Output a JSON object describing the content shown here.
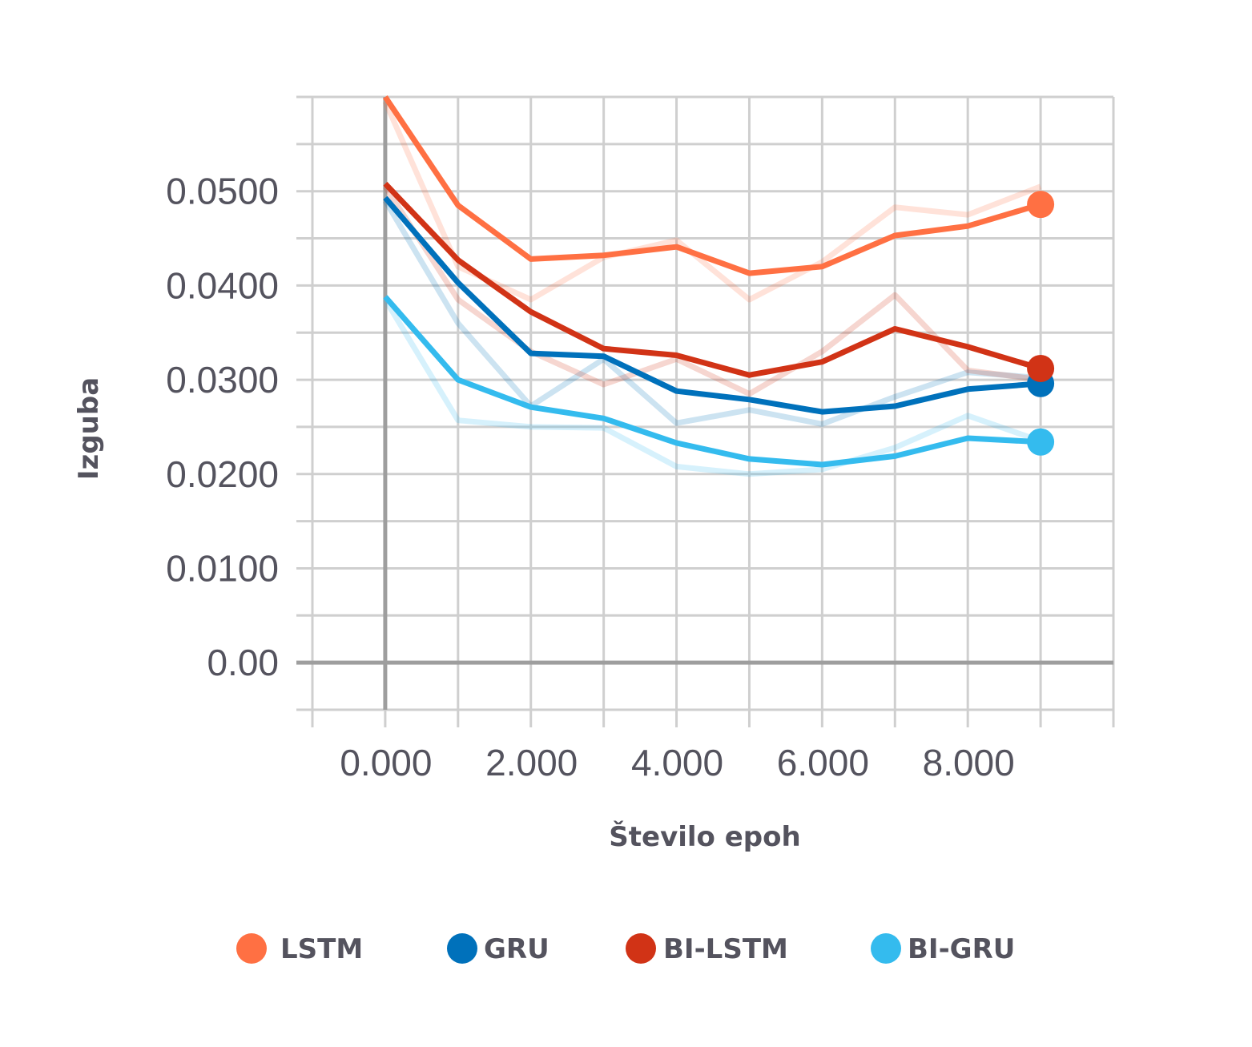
{
  "chart_data": {
    "type": "line",
    "title": "",
    "xlabel": "Število epoh",
    "ylabel": "Izguba",
    "xlim": [
      -1,
      10
    ],
    "ylim": [
      -0.005,
      0.06
    ],
    "x_ticks": [
      0,
      2,
      4,
      6,
      8
    ],
    "x_tick_labels": [
      "0.000",
      "2.000",
      "4.000",
      "6.000",
      "8.000"
    ],
    "y_ticks": [
      0,
      0.01,
      0.02,
      0.03,
      0.04,
      0.05
    ],
    "y_tick_labels": [
      "0.00",
      "0.0100",
      "0.0200",
      "0.0300",
      "0.0400",
      "0.0500"
    ],
    "grid": true,
    "legend_position": "bottom",
    "x": [
      0,
      1,
      2,
      3,
      4,
      5,
      6,
      7,
      8,
      9
    ],
    "series": [
      {
        "name": "LSTM",
        "color": "#ff7043",
        "values": [
          0.06,
          0.0485,
          0.0428,
          0.0432,
          0.0441,
          0.0413,
          0.042,
          0.0453,
          0.0463,
          0.0486
        ],
        "raw_values": [
          0.0595,
          0.042,
          0.0385,
          0.043,
          0.0448,
          0.0385,
          0.0425,
          0.0483,
          0.0475,
          0.0505
        ]
      },
      {
        "name": "GRU",
        "color": "#0071bb",
        "values": [
          0.0493,
          0.0403,
          0.0328,
          0.0325,
          0.0288,
          0.0279,
          0.0266,
          0.0272,
          0.029,
          0.0296
        ],
        "raw_values": [
          0.049,
          0.036,
          0.0272,
          0.0322,
          0.0254,
          0.0268,
          0.0253,
          0.0282,
          0.0308,
          0.0302
        ]
      },
      {
        "name": "BI-LSTM",
        "color": "#d13316",
        "values": [
          0.0508,
          0.0427,
          0.0372,
          0.0333,
          0.0326,
          0.0305,
          0.0319,
          0.0354,
          0.0335,
          0.0312
        ],
        "raw_values": [
          0.0505,
          0.0385,
          0.033,
          0.0295,
          0.0322,
          0.0285,
          0.033,
          0.039,
          0.031,
          0.03
        ]
      },
      {
        "name": "BI-GRU",
        "color": "#34bbee",
        "values": [
          0.0388,
          0.03,
          0.0271,
          0.0259,
          0.0233,
          0.0216,
          0.021,
          0.0219,
          0.0238,
          0.0234
        ],
        "raw_values": [
          0.0385,
          0.0257,
          0.025,
          0.0249,
          0.0208,
          0.02,
          0.0205,
          0.0228,
          0.0262,
          0.0235
        ]
      }
    ]
  }
}
